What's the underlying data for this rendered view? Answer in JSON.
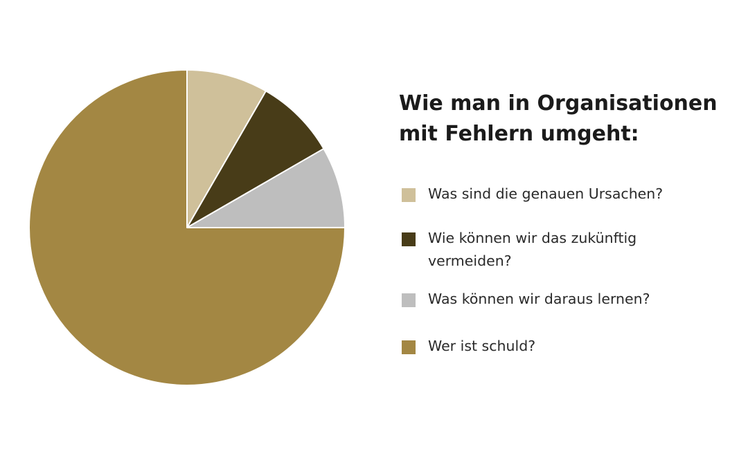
{
  "chart_data": {
    "type": "pie",
    "title": "Wie man in Organisationen mit Fehlern umgeht:",
    "legend_position": "right",
    "start_angle_deg": 0,
    "direction": "clockwise",
    "series": [
      {
        "name": "Was sind die genauen Ursachen?",
        "value": 8.33,
        "color": "#cfc09a"
      },
      {
        "name": "Wie können wir das zukünftig vermeiden?",
        "value": 8.33,
        "color": "#483c18"
      },
      {
        "name": "Was können wir daraus lernen?",
        "value": 8.33,
        "color": "#bebebe"
      },
      {
        "name": "Wer ist schuld?",
        "value": 75,
        "color": "#a38743"
      }
    ]
  }
}
